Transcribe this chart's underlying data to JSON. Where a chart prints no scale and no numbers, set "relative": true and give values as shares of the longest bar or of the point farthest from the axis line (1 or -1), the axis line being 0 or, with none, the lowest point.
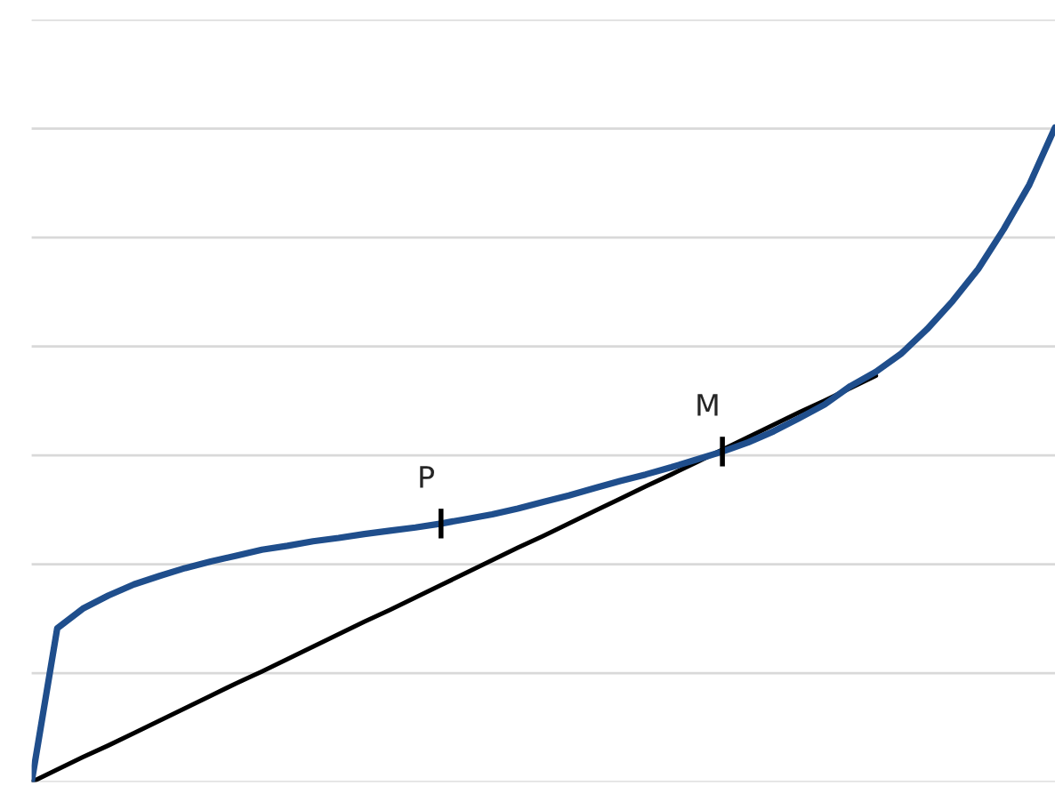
{
  "chart_data": {
    "type": "line",
    "relative": true,
    "grid": "y",
    "marker": "none",
    "line_style": "solid",
    "categories": [
      null,
      null,
      null,
      null,
      null,
      null,
      null,
      null,
      null,
      null,
      null,
      null,
      null,
      null,
      null,
      null,
      null,
      null,
      null,
      null,
      null,
      null,
      null,
      null,
      null,
      null,
      null,
      null,
      null,
      null,
      null,
      null,
      null,
      null,
      null,
      null,
      null,
      null,
      null,
      null,
      null
    ],
    "series": [
      {
        "color": "#1f4e8c",
        "values": [
          0,
          0.235,
          0.265,
          0.285,
          0.302,
          0.315,
          0.327,
          0.337,
          0.346,
          0.355,
          0.361,
          0.368,
          0.373,
          0.379,
          0.384,
          0.389,
          0.395,
          0.402,
          0.409,
          0.418,
          0.428,
          0.438,
          0.449,
          0.46,
          0.47,
          0.481,
          0.493,
          0.505,
          0.519,
          0.536,
          0.556,
          0.577,
          0.605,
          0.627,
          0.655,
          0.692,
          0.735,
          0.784,
          0.845,
          0.913,
          1
        ]
      },
      {
        "color": "#000000",
        "values": [
          0,
          0.019,
          0.038,
          0.056,
          0.075,
          0.094,
          0.113,
          0.132,
          0.151,
          0.169,
          0.188,
          0.207,
          0.226,
          0.245,
          0.263,
          0.282,
          0.301,
          0.32,
          0.339,
          0.358,
          0.376,
          0.395,
          0.414,
          0.433,
          0.452,
          0.47,
          0.489,
          0.508,
          0.527,
          0.546,
          0.565,
          0.583,
          0.602,
          0.621,
          null,
          null,
          null,
          null,
          null,
          null,
          null
        ]
      }
    ],
    "annotations": [
      {
        "text": "P",
        "y": 0.395
      },
      {
        "text": "M",
        "y": 0.505
      }
    ]
  }
}
